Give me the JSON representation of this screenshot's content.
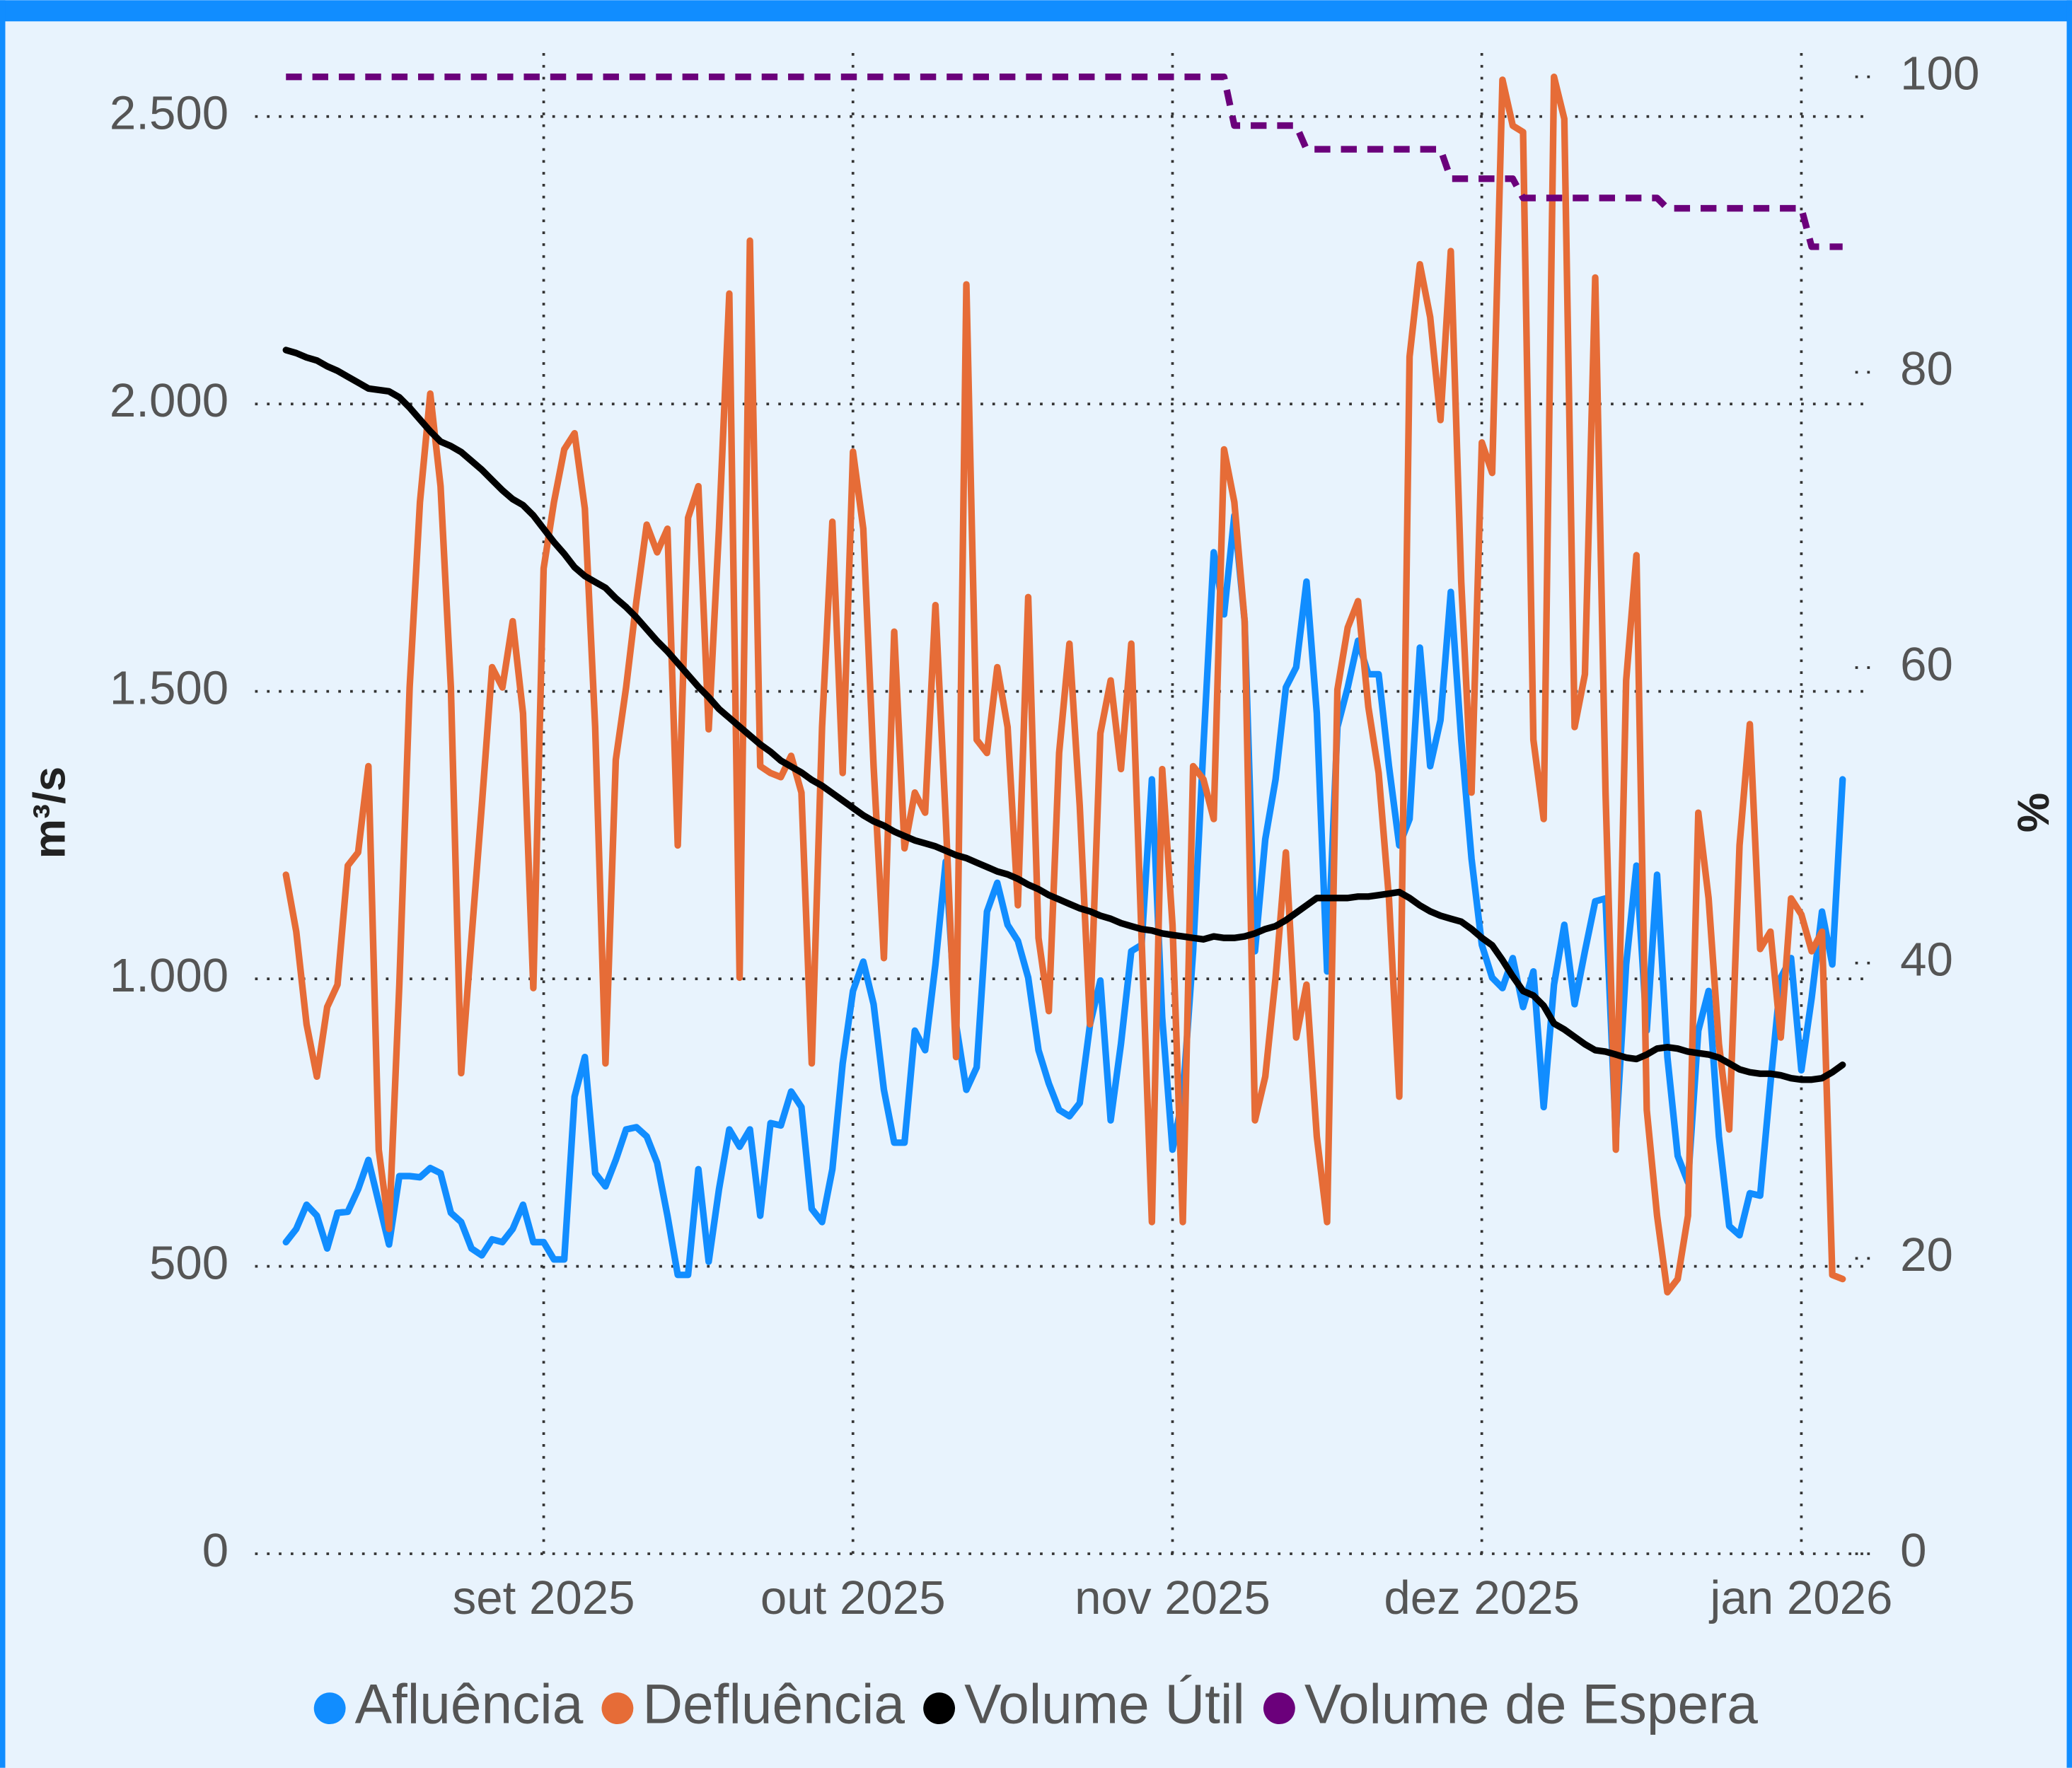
{
  "chart_data": {
    "type": "line",
    "x": [
      0,
      1,
      2,
      3,
      4,
      5,
      6,
      7,
      8,
      9,
      10,
      11,
      12,
      13,
      14,
      15,
      16,
      17,
      18,
      19,
      20,
      21,
      22,
      23,
      24,
      25,
      26,
      27,
      28,
      29,
      30,
      31,
      32,
      33,
      34,
      35,
      36,
      37,
      38,
      39,
      40,
      41,
      42,
      43,
      44,
      45,
      46,
      47,
      48,
      49,
      50,
      51,
      52,
      53,
      54,
      55,
      56,
      57,
      58,
      59,
      60,
      61,
      62,
      63,
      64,
      65,
      66,
      67,
      68,
      69,
      70,
      71,
      72,
      73,
      74,
      75,
      76,
      77,
      78,
      79,
      80,
      81,
      82,
      83,
      84,
      85,
      86,
      87,
      88,
      89,
      90,
      91,
      92,
      93,
      94,
      95,
      96,
      97,
      98,
      99,
      100,
      101,
      102,
      103,
      104,
      105,
      106,
      107,
      108,
      109,
      110,
      111,
      112,
      113,
      114,
      115,
      116,
      117,
      118,
      119,
      120,
      121,
      122,
      123,
      124,
      125,
      126,
      127,
      128,
      129,
      130,
      131,
      132,
      133,
      134,
      135,
      136,
      137,
      138,
      139,
      140,
      141,
      142,
      143,
      144,
      145,
      146,
      147,
      148,
      149,
      150,
      151
    ],
    "xlim": [
      -3,
      153
    ],
    "xticks": [
      {
        "value": 25,
        "label": "set 2025"
      },
      {
        "value": 55,
        "label": "out 2025"
      },
      {
        "value": 86,
        "label": "nov 2025"
      },
      {
        "value": 116,
        "label": "dez 2025"
      },
      {
        "value": 147,
        "label": "jan 2026"
      }
    ],
    "ylim": [
      0,
      2569
    ],
    "yticks": [
      0,
      500,
      {
        "value": 1000,
        "label": "1.000"
      },
      {
        "value": 1500,
        "label": "1.500"
      },
      {
        "value": 2000,
        "label": "2.000"
      },
      {
        "value": 2500,
        "label": "2.500"
      }
    ],
    "y2lim": [
      0,
      100
    ],
    "y2ticks": [
      0,
      20,
      40,
      60,
      80,
      100
    ],
    "ylabel": "m³/s",
    "y2label": "%",
    "grid": true,
    "legend": "bottom",
    "series": [
      {
        "name": "Afluência",
        "color": "#118dff",
        "values": [
          542,
          565,
          607,
          588,
          531,
          593,
          595,
          634,
          685,
          611,
          538,
          657,
          657,
          655,
          671,
          662,
          593,
          577,
          531,
          519,
          547,
          542,
          565,
          607,
          542,
          542,
          512,
          512,
          795,
          864,
          662,
          639,
          685,
          738,
          742,
          726,
          680,
          588,
          485,
          485,
          669,
          508,
          634,
          738,
          708,
          738,
          588,
          749,
          745,
          804,
          777,
          600,
          577,
          669,
          853,
          979,
          1030,
          956,
          807,
          715,
          715,
          910,
          876,
          1025,
          1204,
          921,
          807,
          846,
          1117,
          1167,
          1094,
          1066,
          1002,
          876,
          818,
          772,
          761,
          784,
          921,
          997,
          754,
          887,
          1048,
          1059,
          1347,
          933,
          703,
          795,
          1048,
          1404,
          1742,
          1634,
          1806,
          1622,
          1048,
          1243,
          1347,
          1507,
          1542,
          1691,
          1462,
          1013,
          1438,
          1507,
          1588,
          1530,
          1530,
          1370,
          1232,
          1278,
          1576,
          1370,
          1450,
          1673,
          1416,
          1209,
          1059,
          1002,
          984,
          1036,
          951,
          1013,
          777,
          990,
          1094,
          956,
          1048,
          1135,
          1140,
          726,
          1025,
          1197,
          910,
          1181,
          864,
          692,
          646,
          910,
          979,
          726,
          570,
          554,
          627,
          623,
          818,
          1002,
          1036,
          841,
          967,
          1117,
          1025,
          1347
        ]
      },
      {
        "name": "Defluência",
        "color": "#e66c37",
        "values": [
          1181,
          1082,
          921,
          830,
          951,
          990,
          1197,
          1220,
          1370,
          703,
          565,
          990,
          1507,
          1829,
          2018,
          1857,
          1507,
          836,
          1071,
          1301,
          1542,
          1507,
          1622,
          1462,
          984,
          1714,
          1829,
          1921,
          1949,
          1818,
          1438,
          853,
          1381,
          1507,
          1657,
          1790,
          1742,
          1783,
          1232,
          1802,
          1857,
          1434,
          1783,
          2192,
          1002,
          2284,
          1370,
          1358,
          1351,
          1388,
          1324,
          853,
          1438,
          1795,
          1358,
          1917,
          1783,
          1370,
          1036,
          1604,
          1227,
          1324,
          1289,
          1650,
          1278,
          864,
          2208,
          1416,
          1393,
          1542,
          1438,
          1128,
          1664,
          1071,
          944,
          1393,
          1583,
          1301,
          921,
          1427,
          1519,
          1365,
          1583,
          1071,
          577,
          1365,
          1094,
          577,
          1370,
          1347,
          1278,
          1921,
          1829,
          1622,
          754,
          830,
          1002,
          1220,
          898,
          990,
          726,
          577,
          1503,
          1611,
          1657,
          1473,
          1358,
          1140,
          795,
          2082,
          2243,
          2151,
          1972,
          2266,
          1691,
          1324,
          1933,
          1880,
          2564,
          2484,
          2473,
          1416,
          1278,
          2569,
          2496,
          1438,
          1530,
          2220,
          1324,
          703,
          1519,
          1737,
          772,
          588,
          455,
          478,
          588,
          1289,
          1140,
          887,
          738,
          1232,
          1443,
          1052,
          1082,
          898,
          1140,
          1112,
          1048,
          1082,
          485,
          478
        ]
      },
      {
        "name": "Volume Útil",
        "color": "#000000",
        "axis": "y2",
        "values": [
          81.5,
          81.3,
          81.0,
          80.8,
          80.4,
          80.1,
          79.7,
          79.3,
          78.9,
          78.8,
          78.7,
          78.3,
          77.6,
          76.8,
          76.0,
          75.3,
          75.0,
          74.6,
          74.0,
          73.4,
          72.7,
          72.0,
          71.4,
          71.0,
          70.3,
          69.4,
          68.5,
          67.7,
          66.8,
          66.2,
          65.8,
          65.4,
          64.7,
          64.1,
          63.4,
          62.6,
          61.8,
          61.1,
          60.3,
          59.5,
          58.7,
          58.0,
          57.2,
          56.6,
          56.0,
          55.4,
          54.8,
          54.3,
          53.7,
          53.3,
          52.9,
          52.4,
          52.0,
          51.5,
          51.0,
          50.5,
          50.0,
          49.6,
          49.3,
          48.9,
          48.6,
          48.3,
          48.1,
          47.9,
          47.6,
          47.3,
          47.1,
          46.8,
          46.5,
          46.2,
          46.0,
          45.7,
          45.3,
          45.0,
          44.6,
          44.3,
          44.0,
          43.7,
          43.5,
          43.2,
          43.0,
          42.7,
          42.5,
          42.3,
          42.2,
          42.0,
          41.9,
          41.8,
          41.7,
          41.6,
          41.8,
          41.7,
          41.7,
          41.8,
          42.0,
          42.3,
          42.5,
          42.9,
          43.4,
          43.9,
          44.4,
          44.4,
          44.4,
          44.4,
          44.5,
          44.5,
          44.6,
          44.7,
          44.8,
          44.4,
          43.9,
          43.5,
          43.2,
          43.0,
          42.8,
          42.3,
          41.7,
          41.2,
          40.2,
          39.1,
          38.1,
          37.8,
          37.1,
          35.9,
          35.5,
          35.0,
          34.5,
          34.1,
          34.0,
          33.8,
          33.6,
          33.5,
          33.8,
          34.2,
          34.3,
          34.2,
          34.0,
          33.9,
          33.8,
          33.6,
          33.2,
          32.8,
          32.6,
          32.5,
          32.5,
          32.4,
          32.2,
          32.1,
          32.1,
          32.2,
          32.6,
          33.1
        ]
      },
      {
        "name": "Volume de Espera",
        "color": "#6b007b",
        "axis": "y2",
        "dashed": true,
        "values": [
          100,
          100,
          100,
          100,
          100,
          100,
          100,
          100,
          100,
          100,
          100,
          100,
          100,
          100,
          100,
          100,
          100,
          100,
          100,
          100,
          100,
          100,
          100,
          100,
          100,
          100,
          100,
          100,
          100,
          100,
          100,
          100,
          100,
          100,
          100,
          100,
          100,
          100,
          100,
          100,
          100,
          100,
          100,
          100,
          100,
          100,
          100,
          100,
          100,
          100,
          100,
          100,
          100,
          100,
          100,
          100,
          100,
          100,
          100,
          100,
          100,
          100,
          100,
          100,
          100,
          100,
          100,
          100,
          100,
          100,
          100,
          100,
          100,
          100,
          100,
          100,
          100,
          100,
          100,
          100,
          100,
          100,
          100,
          100,
          100,
          100,
          100,
          100,
          100,
          100,
          100,
          100,
          96.7,
          96.7,
          96.7,
          96.7,
          96.7,
          96.7,
          96.7,
          95.1,
          95.1,
          95.1,
          95.1,
          95.1,
          95.1,
          95.1,
          95.1,
          95.1,
          95.1,
          95.1,
          95.1,
          95.1,
          95.1,
          93.1,
          93.1,
          93.1,
          93.1,
          93.1,
          93.1,
          93.1,
          91.8,
          91.8,
          91.8,
          91.8,
          91.8,
          91.8,
          91.8,
          91.8,
          91.8,
          91.8,
          91.8,
          91.8,
          91.8,
          91.8,
          91.1,
          91.1,
          91.1,
          91.1,
          91.1,
          91.1,
          91.1,
          91.1,
          91.1,
          91.1,
          91.1,
          91.1,
          91.1,
          91.1,
          88.5,
          88.5,
          88.5,
          88.5
        ]
      }
    ]
  }
}
